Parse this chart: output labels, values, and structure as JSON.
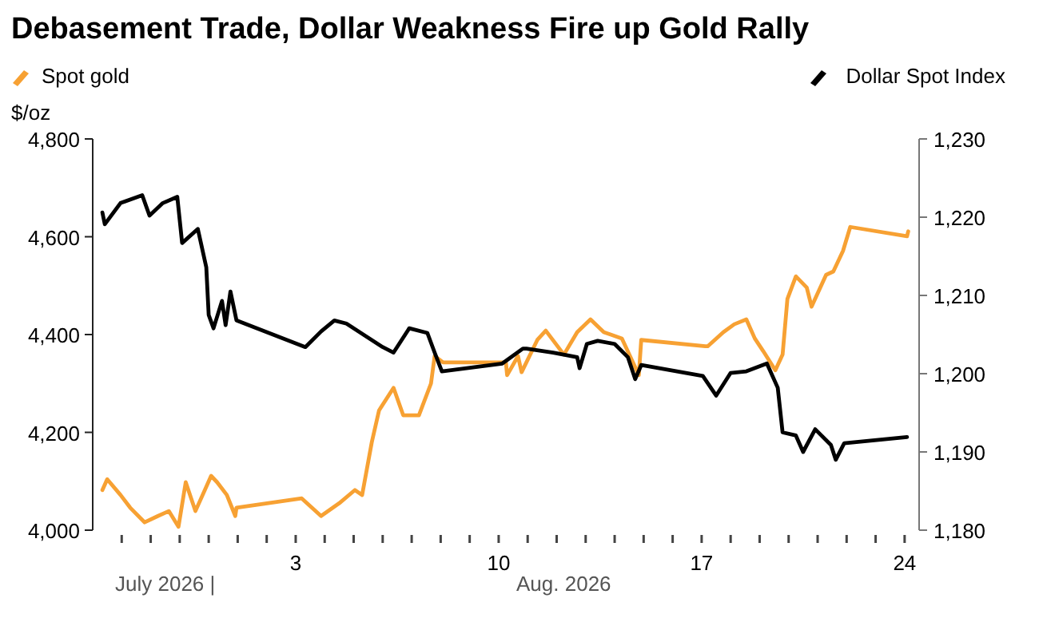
{
  "chart_data": {
    "type": "line",
    "title": "Debasement Trade, Dollar Weakness Fire up Gold Rally",
    "ylabel": "$/oz",
    "legend": "top",
    "xlim": [
      "2026-07-27",
      "2026-08-24T12:00"
    ],
    "xticks": [
      {
        "value": "2026-07-28",
        "label": null
      },
      {
        "value": "2026-07-29",
        "label": null
      },
      {
        "value": "2026-07-30",
        "label": null
      },
      {
        "value": "2026-07-31",
        "label": null
      },
      {
        "value": "2026-08-01",
        "label": null
      },
      {
        "value": "2026-08-02",
        "label": null
      },
      {
        "value": "2026-08-03",
        "label": "3"
      },
      {
        "value": "2026-08-04",
        "label": null
      },
      {
        "value": "2026-08-05",
        "label": null
      },
      {
        "value": "2026-08-06",
        "label": null
      },
      {
        "value": "2026-08-07",
        "label": null
      },
      {
        "value": "2026-08-08",
        "label": null
      },
      {
        "value": "2026-08-09",
        "label": null
      },
      {
        "value": "2026-08-10",
        "label": "10"
      },
      {
        "value": "2026-08-11",
        "label": null
      },
      {
        "value": "2026-08-12",
        "label": null
      },
      {
        "value": "2026-08-13",
        "label": null
      },
      {
        "value": "2026-08-14",
        "label": null
      },
      {
        "value": "2026-08-15",
        "label": null
      },
      {
        "value": "2026-08-16",
        "label": null
      },
      {
        "value": "2026-08-17",
        "label": "17"
      },
      {
        "value": "2026-08-18",
        "label": null
      },
      {
        "value": "2026-08-19",
        "label": null
      },
      {
        "value": "2026-08-20",
        "label": null
      },
      {
        "value": "2026-08-21",
        "label": null
      },
      {
        "value": "2026-08-22",
        "label": null
      },
      {
        "value": "2026-08-23",
        "label": null
      },
      {
        "value": "2026-08-24",
        "label": "24"
      }
    ],
    "ylim": [
      4000,
      4800
    ],
    "yticks": [
      {
        "value": 4000,
        "label": "4,000"
      },
      {
        "value": 4200,
        "label": "4,200"
      },
      {
        "value": 4400,
        "label": "4,400"
      },
      {
        "value": 4600,
        "label": "4,600"
      },
      {
        "value": 4800,
        "label": "4,800"
      }
    ],
    "y2lim": [
      1180,
      1230
    ],
    "y2ticks": [
      {
        "value": 1180,
        "label": "1,180"
      },
      {
        "value": 1190,
        "label": "1,190"
      },
      {
        "value": 1200,
        "label": "1,200"
      },
      {
        "value": 1210,
        "label": "1,210"
      },
      {
        "value": 1220,
        "label": "1,220"
      },
      {
        "value": 1230,
        "label": "1,230"
      }
    ],
    "annotations": [
      "July 2026 |",
      "Aug. 2026"
    ],
    "series": [
      {
        "name": "Spot gold",
        "color": "#f7a133",
        "x": [
          "2026-07-27T08:00",
          "2026-07-27T12:00",
          "2026-07-27T23:00",
          "2026-07-28T07:00",
          "2026-07-28T19:00",
          "2026-07-29T06:00",
          "2026-07-29T15:00",
          "2026-07-29T23:00",
          "2026-07-30T05:00",
          "2026-07-30T13:00",
          "2026-07-31T02:00",
          "2026-07-31T07:00",
          "2026-07-31T15:00",
          "2026-07-31T22:00",
          "2026-07-31T23:00",
          "2026-08-03T05:00",
          "2026-08-03T21:00",
          "2026-08-04T12:00",
          "2026-08-05T01:00",
          "2026-08-05T07:00",
          "2026-08-05T15:00",
          "2026-08-05T21:00",
          "2026-08-06T09:00",
          "2026-08-06T17:00",
          "2026-08-07T06:00",
          "2026-08-07T16:00",
          "2026-08-07T19:00",
          "2026-08-08T02:00",
          "2026-08-10T06:00",
          "2026-08-10T07:00",
          "2026-08-10T16:00",
          "2026-08-10T19:00",
          "2026-08-11T08:00",
          "2026-08-11T15:00",
          "2026-08-12T06:00",
          "2026-08-12T17:00",
          "2026-08-13T04:00",
          "2026-08-13T15:00",
          "2026-08-14T06:00",
          "2026-08-14T20:00",
          "2026-08-14T22:00",
          "2026-08-17T03:00",
          "2026-08-17T05:00",
          "2026-08-17T18:00",
          "2026-08-18T03:00",
          "2026-08-18T13:00",
          "2026-08-18T20:00",
          "2026-08-19T03:00",
          "2026-08-19T13:00",
          "2026-08-19T19:00",
          "2026-08-19T23:00",
          "2026-08-20T06:00",
          "2026-08-20T15:00",
          "2026-08-20T19:00",
          "2026-08-21T07:00",
          "2026-08-21T13:00",
          "2026-08-21T21:00",
          "2026-08-22T03:00",
          "2026-08-24T02:00",
          "2026-08-24T03:00"
        ],
        "values": [
          4082,
          4104,
          4072,
          4046,
          4016,
          4029,
          4039,
          4007,
          4098,
          4039,
          4111,
          4098,
          4072,
          4029,
          4046,
          4065,
          4029,
          4055,
          4082,
          4072,
          4180,
          4245,
          4291,
          4235,
          4235,
          4300,
          4356,
          4343,
          4343,
          4317,
          4356,
          4323,
          4389,
          4408,
          4359,
          4405,
          4431,
          4405,
          4392,
          4317,
          4389,
          4376,
          4376,
          4405,
          4421,
          4431,
          4392,
          4366,
          4327,
          4359,
          4473,
          4519,
          4496,
          4457,
          4522,
          4529,
          4571,
          4620,
          4601,
          4611
        ]
      },
      {
        "name": "Dollar Spot Index",
        "color": "#000000",
        "axis": "y2",
        "x": [
          "2026-07-27T08:00",
          "2026-07-27T10:00",
          "2026-07-27T23:00",
          "2026-07-28T17:00",
          "2026-07-28T23:00",
          "2026-07-29T10:00",
          "2026-07-29T22:00",
          "2026-07-30T02:00",
          "2026-07-30T15:00",
          "2026-07-30T22:00",
          "2026-07-31T00:00",
          "2026-07-31T04:00",
          "2026-07-31T11:00",
          "2026-07-31T14:00",
          "2026-07-31T18:00",
          "2026-07-31T23:00",
          "2026-08-03T08:00",
          "2026-08-03T21:00",
          "2026-08-04T08:00",
          "2026-08-04T18:00",
          "2026-08-05T10:00",
          "2026-08-06T00:00",
          "2026-08-06T09:00",
          "2026-08-06T22:00",
          "2026-08-07T13:00",
          "2026-08-07T19:00",
          "2026-08-08T01:00",
          "2026-08-10T03:00",
          "2026-08-10T20:00",
          "2026-08-10T23:00",
          "2026-08-11T21:00",
          "2026-08-12T17:00",
          "2026-08-12T19:00",
          "2026-08-13T01:00",
          "2026-08-13T10:00",
          "2026-08-14T00:00",
          "2026-08-14T11:00",
          "2026-08-14T17:00",
          "2026-08-14T22:00",
          "2026-08-17T01:00",
          "2026-08-17T12:00",
          "2026-08-18T00:00",
          "2026-08-18T13:00",
          "2026-08-19T06:00",
          "2026-08-19T15:00",
          "2026-08-19T19:00",
          "2026-08-20T06:00",
          "2026-08-20T12:00",
          "2026-08-20T22:00",
          "2026-08-21T11:00",
          "2026-08-21T15:00",
          "2026-08-21T22:00",
          "2026-08-24T02:00"
        ],
        "values": [
          1220.6,
          1219.1,
          1221.8,
          1222.8,
          1220.2,
          1221.8,
          1222.6,
          1216.7,
          1218.5,
          1213.6,
          1207.5,
          1205.8,
          1209.3,
          1206.2,
          1210.5,
          1206.8,
          1203.4,
          1205.4,
          1206.8,
          1206.4,
          1204.8,
          1203.4,
          1202.7,
          1205.8,
          1205.2,
          1202.7,
          1200.3,
          1201.3,
          1203.2,
          1203.2,
          1202.7,
          1202.1,
          1200.7,
          1203.8,
          1204.2,
          1203.8,
          1202.1,
          1199.3,
          1201.1,
          1199.7,
          1197.2,
          1200.1,
          1200.3,
          1201.3,
          1198.2,
          1192.5,
          1192.1,
          1190.0,
          1192.9,
          1190.9,
          1189.0,
          1191.1,
          1191.9
        ]
      }
    ]
  }
}
